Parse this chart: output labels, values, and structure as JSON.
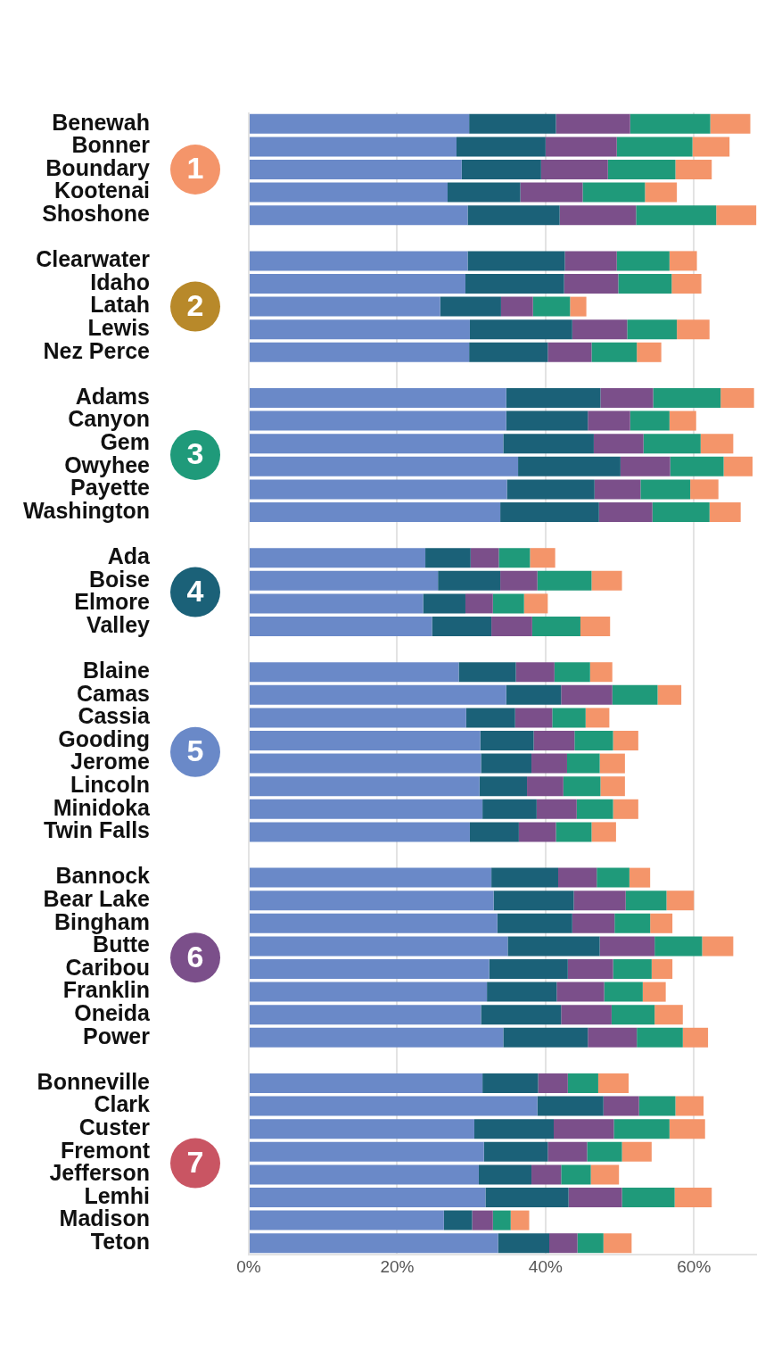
{
  "chart_data": {
    "type": "bar",
    "orientation": "horizontal",
    "stacked": true,
    "categories": [
      "Benewah",
      "Bonner",
      "Boundary",
      "Kootenai",
      "Shoshone",
      null,
      "Clearwater",
      "Idaho",
      "Latah",
      "Lewis",
      "Nez Perce",
      null,
      "Adams",
      "Canyon",
      "Gem",
      "Owyhee",
      "Payette",
      "Washington",
      null,
      "Ada",
      "Boise",
      "Elmore",
      "Valley",
      null,
      "Blaine",
      "Camas",
      "Cassia",
      "Gooding",
      "Jerome",
      "Lincoln",
      "Minidoka",
      "Twin Falls",
      null,
      "Bannock",
      "Bear Lake",
      "Bingham",
      "Butte",
      "Caribou",
      "Franklin",
      "Oneida",
      "Power",
      null,
      "Bonneville",
      "Clark",
      "Custer",
      "Fremont",
      "Jefferson",
      "Lemhi",
      "Madison",
      "Teton"
    ],
    "series": [
      {
        "color": "#6a89c8",
        "values": [
          29.7,
          28.0,
          28.7,
          26.8,
          29.5,
          null,
          29.5,
          29.2,
          25.8,
          29.8,
          29.7,
          null,
          34.7,
          34.7,
          34.3,
          36.3,
          34.8,
          33.9,
          null,
          23.8,
          25.5,
          23.5,
          24.7,
          null,
          28.3,
          34.7,
          29.3,
          31.2,
          31.3,
          31.1,
          31.5,
          29.8,
          null,
          32.7,
          33.0,
          33.5,
          34.9,
          32.4,
          32.1,
          31.3,
          34.3,
          null,
          31.5,
          38.9,
          30.4,
          31.7,
          31.0,
          31.9,
          26.3,
          33.6
        ]
      },
      {
        "color": "#1b6178",
        "values": [
          11.7,
          12.0,
          10.7,
          9.8,
          12.4,
          null,
          13.1,
          13.3,
          8.2,
          13.8,
          10.6,
          null,
          12.7,
          11.0,
          12.2,
          13.8,
          11.8,
          13.3,
          null,
          6.1,
          8.4,
          5.7,
          8.0,
          null,
          7.7,
          7.4,
          6.6,
          7.2,
          6.8,
          6.4,
          7.3,
          6.6,
          null,
          9.0,
          10.8,
          10.1,
          12.4,
          10.6,
          9.4,
          10.8,
          11.4,
          null,
          7.5,
          8.9,
          10.7,
          8.6,
          7.1,
          11.2,
          3.8,
          6.9
        ]
      },
      {
        "color": "#7b4f8a",
        "values": [
          10.0,
          9.6,
          9.0,
          8.4,
          10.3,
          null,
          7.0,
          7.3,
          4.3,
          7.4,
          5.9,
          null,
          7.1,
          5.7,
          6.7,
          6.7,
          6.2,
          7.2,
          null,
          3.8,
          5.0,
          3.7,
          5.5,
          null,
          5.2,
          6.9,
          5.0,
          5.5,
          4.8,
          4.9,
          5.4,
          5.0,
          null,
          5.2,
          7.0,
          5.7,
          7.4,
          6.1,
          6.4,
          6.8,
          6.6,
          null,
          4.0,
          4.8,
          8.1,
          5.3,
          4.0,
          7.2,
          2.8,
          3.8
        ]
      },
      {
        "color": "#1f9a7a",
        "values": [
          10.8,
          10.2,
          9.1,
          8.4,
          10.8,
          null,
          7.1,
          7.2,
          5.0,
          6.7,
          6.1,
          null,
          9.1,
          5.3,
          7.7,
          7.2,
          6.7,
          7.7,
          null,
          4.2,
          7.3,
          4.2,
          6.5,
          null,
          4.8,
          6.1,
          4.5,
          5.2,
          4.4,
          5.0,
          4.9,
          4.8,
          null,
          4.4,
          5.5,
          4.8,
          6.4,
          5.2,
          5.2,
          5.8,
          6.2,
          null,
          4.1,
          4.9,
          7.5,
          4.7,
          4.0,
          7.1,
          2.4,
          3.5
        ]
      },
      {
        "color": "#f4956a",
        "values": [
          5.4,
          5.0,
          4.9,
          4.3,
          5.4,
          null,
          3.7,
          4.0,
          2.2,
          4.4,
          3.3,
          null,
          4.5,
          3.6,
          4.4,
          3.9,
          3.8,
          4.2,
          null,
          3.4,
          4.1,
          3.2,
          4.0,
          null,
          3.0,
          3.2,
          3.2,
          3.4,
          3.4,
          3.3,
          3.4,
          3.3,
          null,
          2.8,
          3.7,
          3.0,
          4.2,
          2.8,
          3.1,
          3.8,
          3.4,
          null,
          4.1,
          3.8,
          4.8,
          4.0,
          3.8,
          5.0,
          2.5,
          3.8
        ]
      }
    ],
    "xlim": [
      0,
      68.5
    ],
    "xticks": [
      {
        "value": 0,
        "label": "0%"
      },
      {
        "value": 20,
        "label": "20%"
      },
      {
        "value": 40,
        "label": "40%"
      },
      {
        "value": 60,
        "label": "60%"
      }
    ],
    "grid": "x",
    "legend": false,
    "annotations": [
      "1",
      "2",
      "3",
      "4",
      "5",
      "6",
      "7"
    ]
  }
}
